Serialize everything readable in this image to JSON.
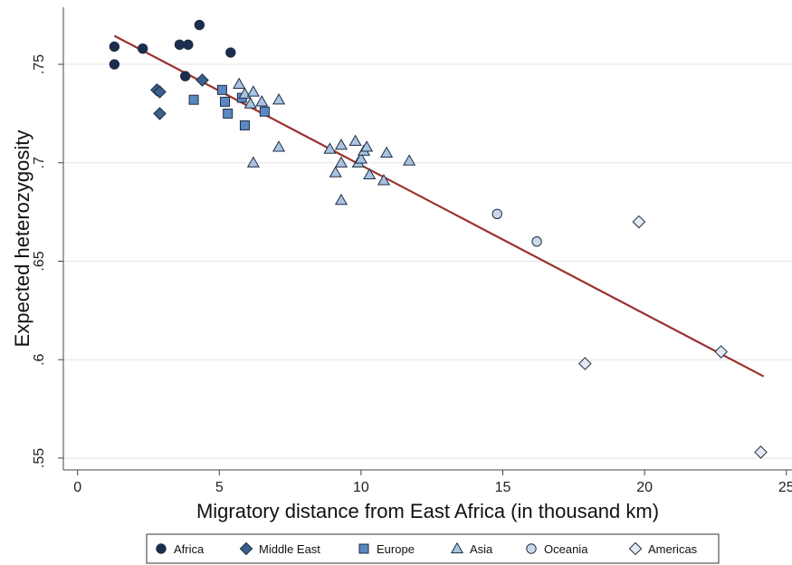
{
  "chart_data": {
    "type": "scatter",
    "title": "",
    "xlabel": "Migratory distance from East Africa (in thousand km)",
    "ylabel": "Expected heterozygosity",
    "xlim": [
      -0.5,
      25.2
    ],
    "ylim": [
      0.544,
      0.779
    ],
    "xticks": [
      0,
      5,
      10,
      15,
      20,
      25
    ],
    "xtick_labels": [
      "0",
      "5",
      "10",
      "15",
      "20",
      "25"
    ],
    "yticks": [
      0.55,
      0.6,
      0.65,
      0.7,
      0.75
    ],
    "ytick_labels": [
      ".55",
      ".6",
      ".65",
      ".7",
      ".75"
    ],
    "grid": "horizontal",
    "legend_position": "bottom",
    "fit_line": {
      "x": [
        1.3,
        24.2
      ],
      "y": [
        0.7645,
        0.5915
      ],
      "color": "#9b3030"
    },
    "series": [
      {
        "name": "Africa",
        "marker": "circle",
        "fill": "#1a2e4f",
        "points": [
          [
            1.3,
            0.759
          ],
          [
            1.3,
            0.75
          ],
          [
            2.3,
            0.758
          ],
          [
            3.6,
            0.76
          ],
          [
            3.9,
            0.76
          ],
          [
            4.3,
            0.77
          ],
          [
            5.4,
            0.756
          ],
          [
            3.8,
            0.744
          ]
        ]
      },
      {
        "name": "Middle East",
        "marker": "diamond",
        "fill": "#3a5f8c",
        "points": [
          [
            2.8,
            0.737
          ],
          [
            2.9,
            0.736
          ],
          [
            2.9,
            0.725
          ],
          [
            4.4,
            0.742
          ]
        ]
      },
      {
        "name": "Europe",
        "marker": "square",
        "fill": "#5b88c2",
        "points": [
          [
            4.1,
            0.732
          ],
          [
            5.1,
            0.737
          ],
          [
            5.2,
            0.731
          ],
          [
            5.3,
            0.725
          ],
          [
            5.9,
            0.719
          ],
          [
            6.6,
            0.726
          ],
          [
            5.8,
            0.733
          ]
        ]
      },
      {
        "name": "Asia",
        "marker": "triangle",
        "fill": "#a9c3e2",
        "points": [
          [
            5.7,
            0.74
          ],
          [
            5.9,
            0.735
          ],
          [
            6.1,
            0.73
          ],
          [
            6.2,
            0.736
          ],
          [
            6.5,
            0.731
          ],
          [
            7.1,
            0.732
          ],
          [
            6.2,
            0.7
          ],
          [
            7.1,
            0.708
          ],
          [
            8.9,
            0.707
          ],
          [
            9.1,
            0.695
          ],
          [
            9.3,
            0.709
          ],
          [
            9.3,
            0.7
          ],
          [
            9.3,
            0.681
          ],
          [
            9.8,
            0.711
          ],
          [
            9.9,
            0.7
          ],
          [
            10.0,
            0.702
          ],
          [
            10.1,
            0.706
          ],
          [
            10.2,
            0.708
          ],
          [
            10.3,
            0.694
          ],
          [
            10.8,
            0.691
          ],
          [
            10.9,
            0.705
          ],
          [
            11.7,
            0.701
          ]
        ]
      },
      {
        "name": "Oceania",
        "marker": "circle",
        "fill": "#c9d8ea",
        "points": [
          [
            14.8,
            0.674
          ],
          [
            16.2,
            0.66
          ]
        ]
      },
      {
        "name": "Americas",
        "marker": "diamond",
        "fill": "#e4eaf2",
        "points": [
          [
            17.9,
            0.598
          ],
          [
            19.8,
            0.67
          ],
          [
            22.7,
            0.604
          ],
          [
            24.1,
            0.553
          ]
        ]
      }
    ]
  }
}
